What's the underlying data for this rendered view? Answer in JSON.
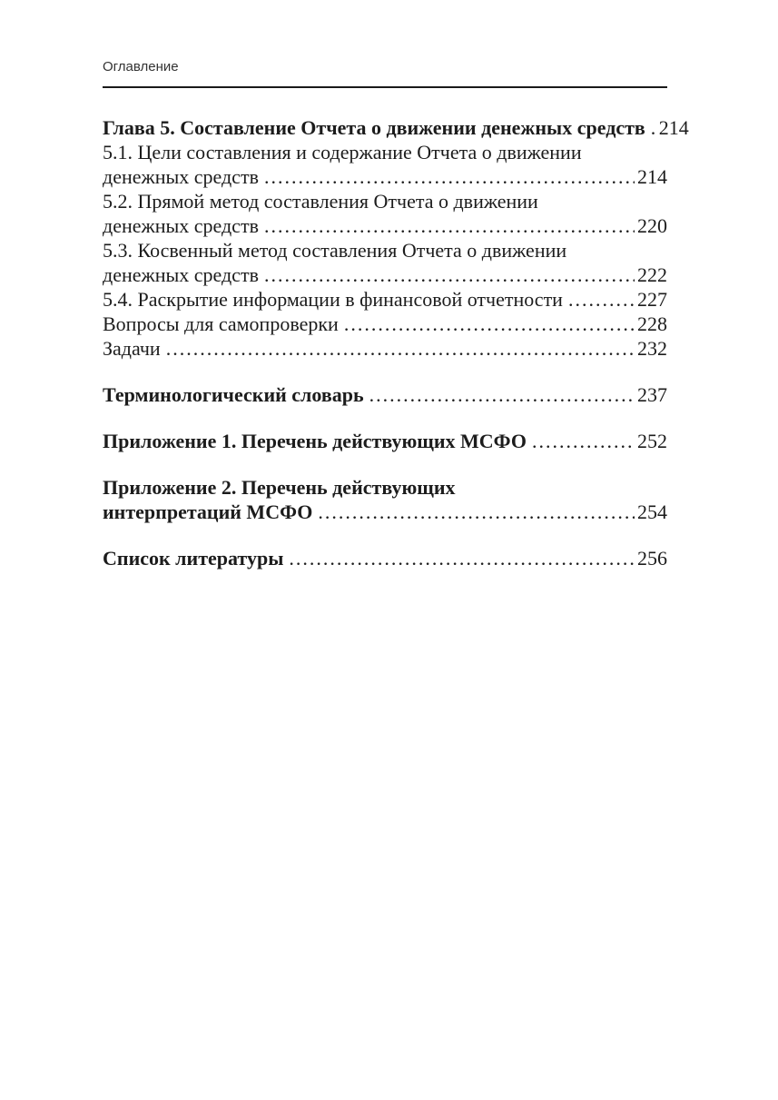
{
  "header": {
    "title": "Оглавление"
  },
  "toc": {
    "entries": [
      {
        "bold": true,
        "gap_before": false,
        "lines": [
          "Глава 5. Составление Отчета о движении денежных средств"
        ],
        "page": "214"
      },
      {
        "bold": false,
        "gap_before": false,
        "lines": [
          "5.1. Цели составления и содержание Отчета о движении",
          "денежных средств"
        ],
        "page": "214"
      },
      {
        "bold": false,
        "gap_before": false,
        "lines": [
          "5.2. Прямой метод составления Отчета о движении",
          "денежных средств"
        ],
        "page": "220"
      },
      {
        "bold": false,
        "gap_before": false,
        "lines": [
          "5.3. Косвенный метод составления Отчета о движении",
          "денежных средств"
        ],
        "page": "222"
      },
      {
        "bold": false,
        "gap_before": false,
        "lines": [
          "5.4. Раскрытие информации в финансовой отчетности"
        ],
        "page": "227"
      },
      {
        "bold": false,
        "gap_before": false,
        "lines": [
          "Вопросы для самопроверки"
        ],
        "page": "228"
      },
      {
        "bold": false,
        "gap_before": false,
        "lines": [
          "Задачи"
        ],
        "page": "232"
      },
      {
        "bold": true,
        "gap_before": true,
        "lines": [
          "Терминологический словарь"
        ],
        "page": "237"
      },
      {
        "bold": true,
        "gap_before": true,
        "lines": [
          "Приложение 1. Перечень действующих МСФО"
        ],
        "page": "252"
      },
      {
        "bold": true,
        "gap_before": true,
        "lines": [
          "Приложение 2. Перечень действующих",
          "интерпретаций МСФО"
        ],
        "page": "254"
      },
      {
        "bold": true,
        "gap_before": true,
        "lines": [
          "Список литературы"
        ],
        "page": "256"
      }
    ]
  },
  "colors": {
    "background": "#ffffff",
    "text": "#1c1c1c",
    "header_text": "#333333",
    "rule": "#1a1a1a"
  }
}
